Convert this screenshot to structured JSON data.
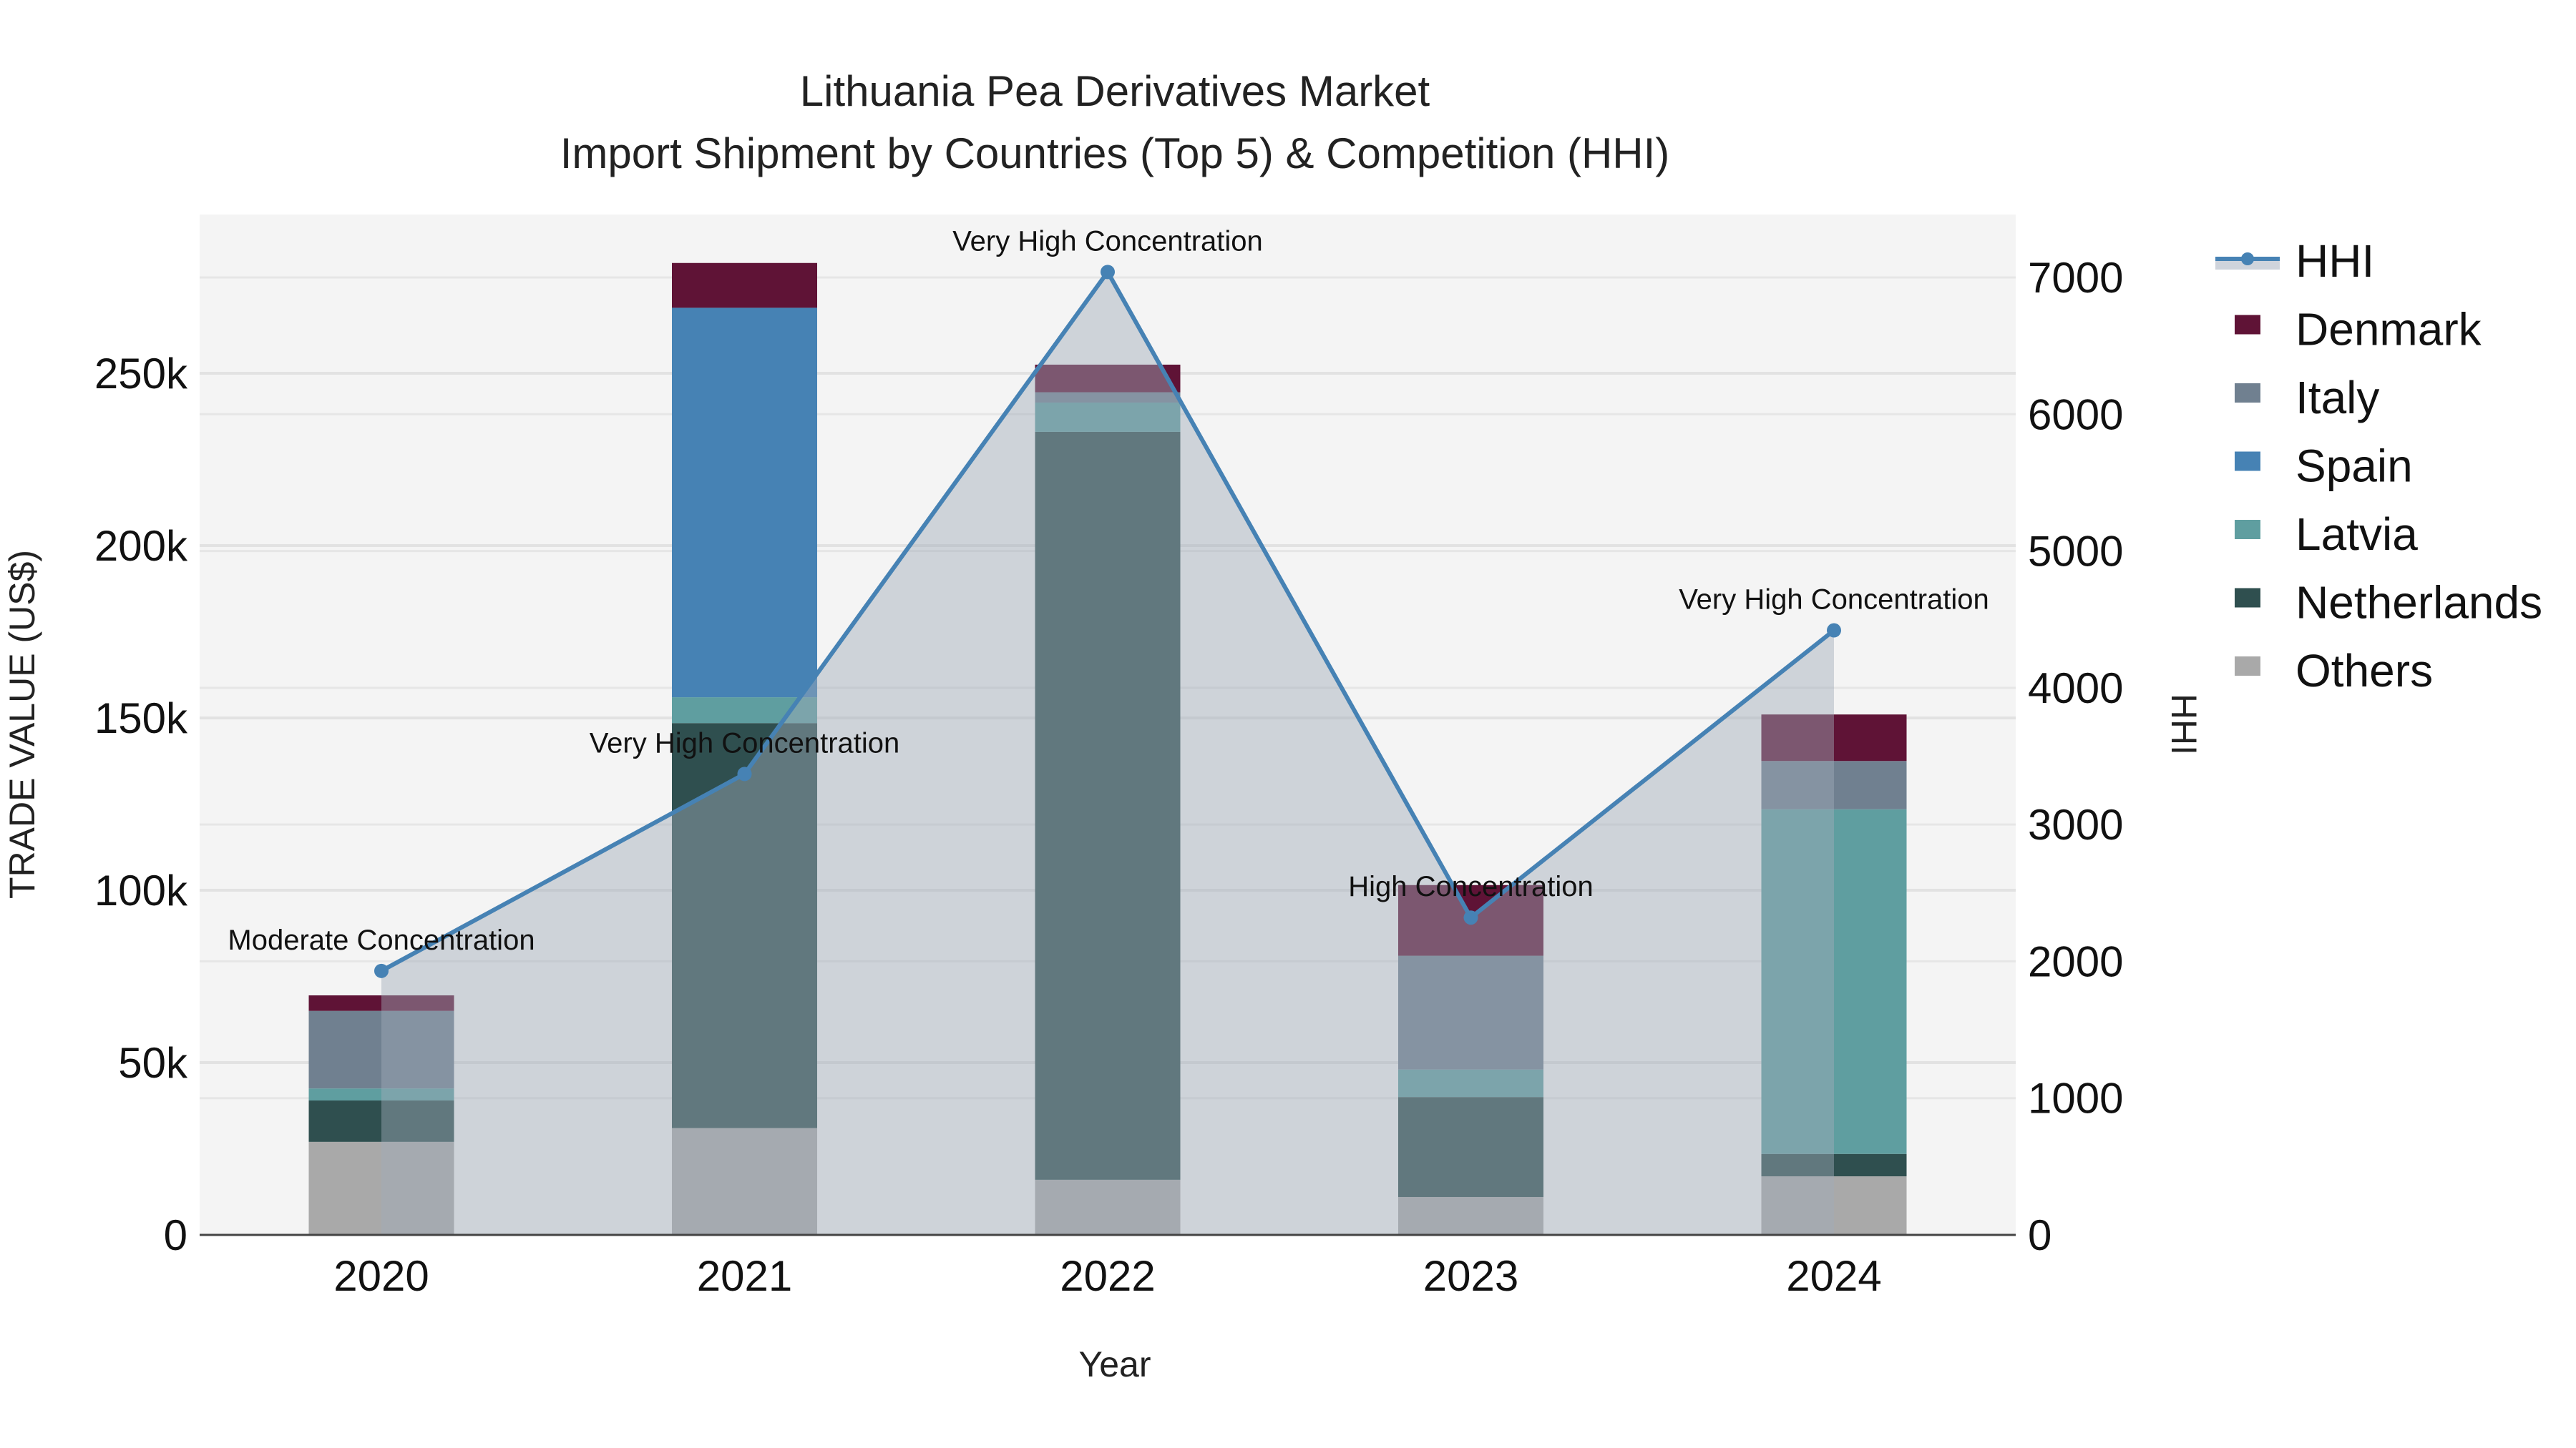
{
  "title": {
    "line1": "Lithuania Pea Derivatives Market",
    "line2": "Import Shipment by Countries (Top 5) & Competition (HHI)"
  },
  "axes": {
    "x_title": "Year",
    "y_left_title": "TRADE VALUE (US$)",
    "y_right_title": "HHI",
    "y_left_ticks": [
      "0",
      "50k",
      "100k",
      "150k",
      "200k",
      "250k"
    ],
    "y_right_ticks": [
      "0",
      "1000",
      "2000",
      "3000",
      "4000",
      "5000",
      "6000",
      "7000"
    ],
    "x_ticks": [
      "2020",
      "2021",
      "2022",
      "2023",
      "2024"
    ]
  },
  "legend": {
    "items": [
      {
        "label": "HHI",
        "type": "line",
        "color": "#4682B4"
      },
      {
        "label": "Denmark",
        "type": "bar",
        "color": "#5F1336"
      },
      {
        "label": "Italy",
        "type": "bar",
        "color": "#708090"
      },
      {
        "label": "Spain",
        "type": "bar",
        "color": "#4682B4"
      },
      {
        "label": "Latvia",
        "type": "bar",
        "color": "#5F9EA0"
      },
      {
        "label": "Netherlands",
        "type": "bar",
        "color": "#2F4F4F"
      },
      {
        "label": "Others",
        "type": "bar",
        "color": "#A9A9A9"
      }
    ]
  },
  "chart_data": {
    "type": "bar",
    "stacked": true,
    "title": "Lithuania Pea Derivatives Market — Import Shipment by Countries (Top 5) & Competition (HHI)",
    "xlabel": "Year",
    "ylabel": "TRADE VALUE (US$)",
    "y2label": "HHI",
    "categories": [
      "2020",
      "2021",
      "2022",
      "2023",
      "2024"
    ],
    "ylim": [
      0,
      297000
    ],
    "y2lim": [
      0,
      7450
    ],
    "series": [
      {
        "name": "Others",
        "color": "#A9A9A9",
        "values": [
          27000,
          31000,
          16000,
          11000,
          17000
        ]
      },
      {
        "name": "Netherlands",
        "color": "#2F4F4F",
        "values": [
          12000,
          117500,
          217000,
          29000,
          6500
        ]
      },
      {
        "name": "Latvia",
        "color": "#5F9EA0",
        "values": [
          3500,
          7500,
          8500,
          8000,
          100000
        ]
      },
      {
        "name": "Spain",
        "color": "#4682B4",
        "values": [
          0,
          113000,
          0,
          0,
          0
        ]
      },
      {
        "name": "Italy",
        "color": "#708090",
        "values": [
          22500,
          0,
          3000,
          33000,
          14000
        ]
      },
      {
        "name": "Denmark",
        "color": "#5F1336",
        "values": [
          4500,
          13000,
          8000,
          20500,
          13500
        ]
      }
    ],
    "line_series": {
      "name": "HHI",
      "axis": "right",
      "color": "#4682B4",
      "fill": "tozeroy",
      "values": [
        1930,
        3370,
        7040,
        2320,
        4420
      ],
      "annotations": [
        "Moderate Concentration",
        "Very High Concentration",
        "Very High Concentration",
        "High Concentration",
        "Very High Concentration"
      ]
    },
    "legend_position": "right",
    "grid": true
  }
}
